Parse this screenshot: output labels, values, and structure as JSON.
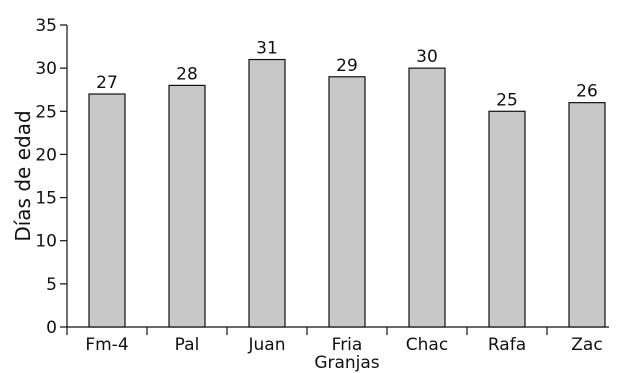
{
  "chart_data": {
    "type": "bar",
    "categories": [
      "Fm-4",
      "Pal",
      "Juan",
      "Fria Granjas",
      "Chac",
      "Rafa",
      "Zac"
    ],
    "category_lines": [
      [
        "Fm-4"
      ],
      [
        "Pal"
      ],
      [
        "Juan"
      ],
      [
        "Fria",
        "Granjas"
      ],
      [
        "Chac"
      ],
      [
        "Rafa"
      ],
      [
        "Zac"
      ]
    ],
    "values": [
      27,
      28,
      31,
      29,
      30,
      25,
      26
    ],
    "data_labels": [
      "27",
      "28",
      "31",
      "29",
      "30",
      "25",
      "26"
    ],
    "title": "",
    "xlabel": "",
    "ylabel": "Días de edad",
    "ylim": [
      0,
      35
    ],
    "yticks": [
      0,
      5,
      10,
      15,
      20,
      25,
      30,
      35
    ],
    "grid": false,
    "legend": "none",
    "bar_color": "#c8c8c8",
    "bar_edge_color": "#111111"
  }
}
